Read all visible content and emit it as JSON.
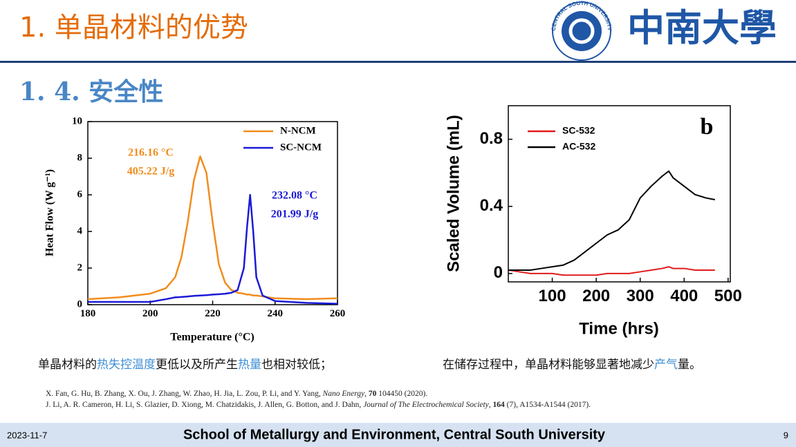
{
  "header": {
    "title": "1. 单晶材料的优势",
    "logo_text": "中南大學",
    "logo_ring": "CENTRAL SOUTH UNIVERSITY"
  },
  "section": "1. 4. 安全性",
  "chart_data": [
    {
      "type": "line",
      "xlabel": "Temperature (°C)",
      "ylabel": "Heat Flow (W g⁻¹)",
      "x": [
        180,
        190,
        200,
        205,
        208,
        210,
        212,
        214,
        216,
        218,
        220,
        222,
        224,
        226,
        228,
        230,
        231,
        232,
        233,
        234,
        236,
        240,
        250,
        260
      ],
      "series": [
        {
          "name": "N-NCM",
          "color": "#f28c1c",
          "values": [
            0.3,
            0.4,
            0.6,
            0.9,
            1.5,
            2.6,
            4.5,
            6.8,
            8.1,
            7.2,
            4.5,
            2.2,
            1.2,
            0.8,
            0.65,
            0.6,
            0.55,
            0.55,
            0.5,
            0.5,
            0.45,
            0.35,
            0.3,
            0.35
          ]
        },
        {
          "name": "SC-NCM",
          "color": "#1a1ad6",
          "values": [
            0.15,
            0.15,
            0.15,
            0.3,
            0.4,
            0.42,
            0.45,
            0.48,
            0.5,
            0.52,
            0.55,
            0.57,
            0.6,
            0.65,
            0.8,
            2.0,
            4.2,
            6.0,
            4.0,
            1.5,
            0.5,
            0.2,
            0.1,
            0.05
          ]
        }
      ],
      "annotations": [
        "216.16 °C",
        "405.22 J/g",
        "232.08 °C",
        "201.99 J/g"
      ],
      "xlim": [
        180,
        260
      ],
      "xticks": [
        180,
        200,
        220,
        240,
        260
      ],
      "ylim": [
        0,
        10
      ],
      "yticks": [
        0,
        2,
        4,
        6,
        8,
        10
      ],
      "legend": "upper right"
    },
    {
      "type": "line",
      "xlabel": "Time (hrs)",
      "ylabel": "Scaled Volume (mL)",
      "x": [
        0,
        25,
        50,
        75,
        100,
        125,
        150,
        175,
        200,
        225,
        250,
        275,
        300,
        325,
        350,
        365,
        375,
        400,
        425,
        450,
        470
      ],
      "series": [
        {
          "name": "SC-532",
          "color": "#e01b1b",
          "values": [
            0.02,
            0.01,
            0.0,
            0.0,
            0.0,
            -0.01,
            -0.01,
            -0.01,
            -0.01,
            0.0,
            0.0,
            0.0,
            0.01,
            0.02,
            0.03,
            0.04,
            0.03,
            0.03,
            0.02,
            0.02,
            0.02
          ]
        },
        {
          "name": "AC-532",
          "color": "#000000",
          "values": [
            0.02,
            0.02,
            0.02,
            0.03,
            0.04,
            0.05,
            0.08,
            0.13,
            0.18,
            0.23,
            0.26,
            0.32,
            0.45,
            0.52,
            0.58,
            0.61,
            0.57,
            0.52,
            0.47,
            0.45,
            0.44
          ]
        }
      ],
      "annotations": [
        "b"
      ],
      "xlim": [
        0,
        505
      ],
      "xticks": [
        100,
        200,
        300,
        400,
        500
      ],
      "ylim": [
        -0.05,
        1.0
      ],
      "yticks": [
        0,
        0.4,
        0.8
      ],
      "legend": "upper left"
    }
  ],
  "captions": [
    [
      "单晶材料的",
      "热失控温度",
      "更低以及所产生",
      "热量",
      "也相对较低；"
    ],
    [
      "在储存过程中，单晶材料能够显著地减少",
      "产气",
      "量。"
    ]
  ],
  "references": [
    [
      "X. Fan, G. Hu, B. Zhang, X. Ou, J. Zhang, W. Zhao, H. Jia, L. Zou, P. Li, and Y. Yang, ",
      "Nano Energy",
      ", ",
      "70",
      " 104450 (2020)."
    ],
    [
      "J. Li, A. R. Cameron, H. Li, S. Glazier, D. Xiong, M. Chatzidakis, J. Allen, G. Botton, and J. Dahn, ",
      "Journal of The Electrochemical Society",
      ", ",
      "164",
      " (7), A1534-A1544 (2017)."
    ]
  ],
  "footer": {
    "date": "2023-11-7",
    "org": "School of Metallurgy and Environment, Central South University",
    "page": "9"
  }
}
